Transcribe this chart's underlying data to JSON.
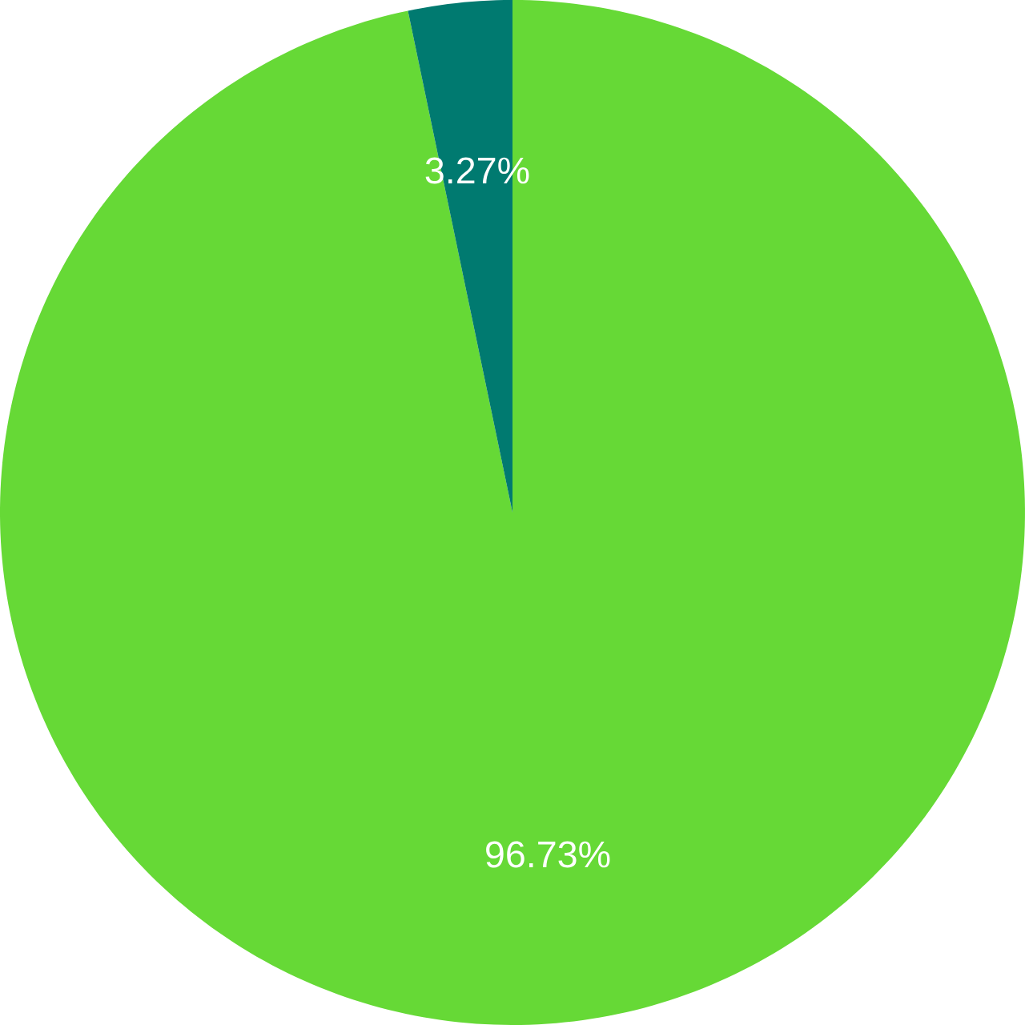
{
  "chart_data": {
    "type": "pie",
    "categories": [
      null,
      null
    ],
    "values": [
      96.73,
      3.27
    ],
    "value_labels": [
      "96.73%",
      "3.27%"
    ],
    "colors": [
      "#66d936",
      "#007a70"
    ]
  }
}
